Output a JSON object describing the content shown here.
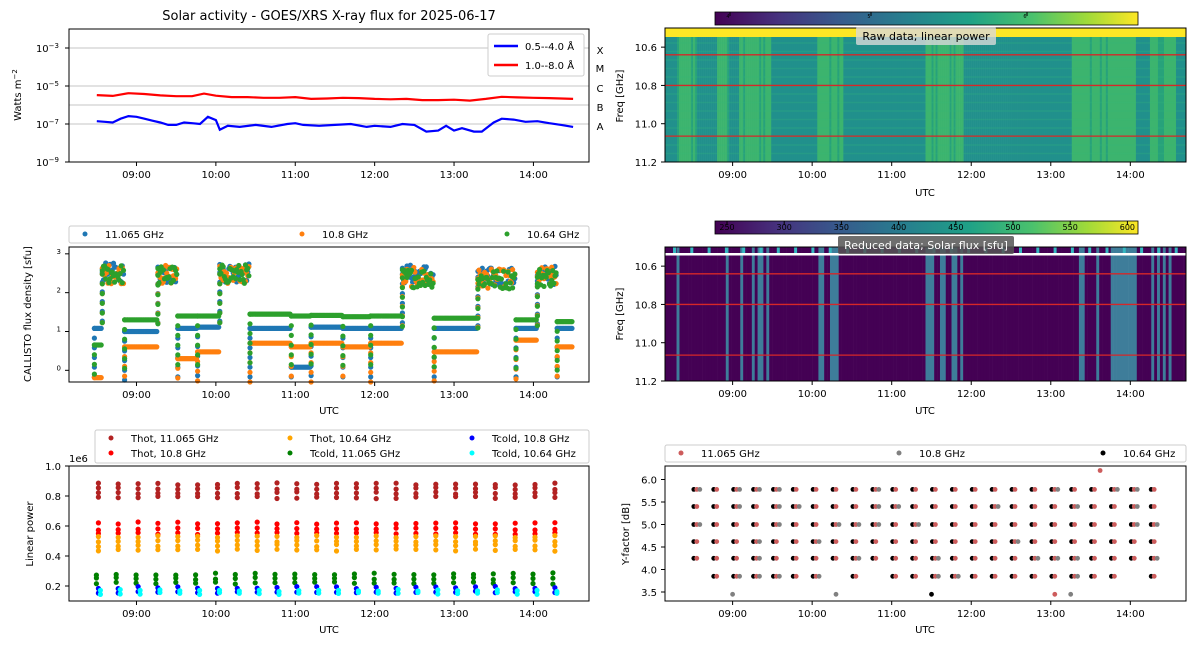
{
  "figure": {
    "utc_label": "UTC",
    "x_ticks": [
      "09:00",
      "10:00",
      "11:00",
      "12:00",
      "13:00",
      "14:00"
    ]
  },
  "chart_data": [
    {
      "id": "goes",
      "type": "line",
      "title": "Solar activity - GOES/XRS X-ray flux for 2025-06-17",
      "ylabel": "Watts m",
      "ylabel_sup": "−2",
      "yscale": "log",
      "ylim": [
        1e-09,
        0.01
      ],
      "y_ticks": [
        "10",
        "10",
        "10",
        "10"
      ],
      "y_tick_exps": [
        "−9",
        "−7",
        "−5",
        "−3"
      ],
      "flare_classes": [
        "X",
        "M",
        "C",
        "B",
        "A"
      ],
      "series": [
        {
          "name": "0.5--4.0 Å",
          "color": "#0000ff",
          "points": [
            [
              8.5,
              1.4e-07
            ],
            [
              8.6,
              1.3e-07
            ],
            [
              8.7,
              1.2e-07
            ],
            [
              8.8,
              1.9e-07
            ],
            [
              8.9,
              2.6e-07
            ],
            [
              9.0,
              2.4e-07
            ],
            [
              9.1,
              1.9e-07
            ],
            [
              9.2,
              1.5e-07
            ],
            [
              9.3,
              1.2e-07
            ],
            [
              9.4,
              9e-08
            ],
            [
              9.5,
              9e-08
            ],
            [
              9.6,
              1.2e-07
            ],
            [
              9.7,
              1.1e-07
            ],
            [
              9.8,
              1e-07
            ],
            [
              9.9,
              2.4e-07
            ],
            [
              10.0,
              1.6e-07
            ],
            [
              10.05,
              5e-08
            ],
            [
              10.15,
              8e-08
            ],
            [
              10.3,
              7e-08
            ],
            [
              10.5,
              9e-08
            ],
            [
              10.7,
              7e-08
            ],
            [
              10.9,
              1e-07
            ],
            [
              11.0,
              1.1e-07
            ],
            [
              11.1,
              9e-08
            ],
            [
              11.3,
              8e-08
            ],
            [
              11.5,
              9e-08
            ],
            [
              11.7,
              1e-07
            ],
            [
              11.9,
              7e-08
            ],
            [
              12.0,
              8e-08
            ],
            [
              12.2,
              7e-08
            ],
            [
              12.35,
              1e-07
            ],
            [
              12.5,
              9e-08
            ],
            [
              12.65,
              4e-08
            ],
            [
              12.8,
              4.5e-08
            ],
            [
              12.9,
              8e-08
            ],
            [
              13.0,
              4.5e-08
            ],
            [
              13.1,
              6e-08
            ],
            [
              13.25,
              4e-08
            ],
            [
              13.35,
              4e-08
            ],
            [
              13.5,
              1.2e-07
            ],
            [
              13.6,
              1.9e-07
            ],
            [
              13.75,
              1.7e-07
            ],
            [
              13.9,
              1.3e-07
            ],
            [
              14.05,
              1.4e-07
            ],
            [
              14.2,
              1.1e-07
            ],
            [
              14.35,
              9e-08
            ],
            [
              14.5,
              7e-08
            ]
          ]
        },
        {
          "name": "1.0--8.0 Å",
          "color": "#ff0000",
          "points": [
            [
              8.5,
              3.3e-06
            ],
            [
              8.7,
              3e-06
            ],
            [
              8.9,
              4.2e-06
            ],
            [
              9.1,
              3.8e-06
            ],
            [
              9.3,
              3.2e-06
            ],
            [
              9.5,
              2.9e-06
            ],
            [
              9.7,
              2.9e-06
            ],
            [
              9.85,
              4e-06
            ],
            [
              10.0,
              3.1e-06
            ],
            [
              10.2,
              2.6e-06
            ],
            [
              10.4,
              2.6e-06
            ],
            [
              10.6,
              2.4e-06
            ],
            [
              10.8,
              2.4e-06
            ],
            [
              11.0,
              2.6e-06
            ],
            [
              11.2,
              2.1e-06
            ],
            [
              11.4,
              2.2e-06
            ],
            [
              11.6,
              2.4e-06
            ],
            [
              11.8,
              2.3e-06
            ],
            [
              12.0,
              2.1e-06
            ],
            [
              12.2,
              2e-06
            ],
            [
              12.4,
              2.1e-06
            ],
            [
              12.6,
              1.8e-06
            ],
            [
              12.8,
              1.8e-06
            ],
            [
              13.0,
              1.9e-06
            ],
            [
              13.2,
              1.7e-06
            ],
            [
              13.4,
              2.1e-06
            ],
            [
              13.6,
              2.7e-06
            ],
            [
              13.8,
              2.5e-06
            ],
            [
              14.0,
              2.4e-06
            ],
            [
              14.2,
              2.3e-06
            ],
            [
              14.5,
              2.1e-06
            ]
          ]
        }
      ]
    },
    {
      "id": "raw",
      "type": "heatmap",
      "title": "Raw data; linear power",
      "ylabel": "Freq [GHz]",
      "y_ticks": [
        "10.6",
        "10.8",
        "11.0",
        "11.2"
      ],
      "colorbar_ticks": [
        "10",
        "10",
        "10"
      ],
      "colorbar_exps": [
        "4",
        "5",
        "6"
      ],
      "red_lines": [
        10.64,
        10.8,
        11.065
      ]
    },
    {
      "id": "callisto",
      "type": "scatter",
      "ylabel": "CALLISTO flux density [sfu]",
      "yscale": "log",
      "ylim": [
        0.5,
        1500
      ],
      "y_ticks": [
        "10",
        "10",
        "10",
        "10"
      ],
      "y_tick_exps": [
        "0",
        "1",
        "2",
        "3"
      ],
      "series": [
        {
          "name": "11.065 GHz",
          "color": "#1f77b4"
        },
        {
          "name": "10.8 GHz",
          "color": "#ff7f0e"
        },
        {
          "name": "10.64 GHz",
          "color": "#2ca02c"
        }
      ],
      "segments": [
        {
          "t0": 8.47,
          "t1": 8.57,
          "b": 12,
          "o": 0.65,
          "g": 4.5,
          "ptb": 0,
          "pto": 0,
          "ptg": 0
        },
        {
          "t0": 8.57,
          "t1": 8.85,
          "b": 330,
          "o": 300,
          "g": 300,
          "ptb": 1,
          "pto": 1,
          "ptg": 1
        },
        {
          "t0": 8.85,
          "t1": 9.27,
          "b": 10,
          "o": 4,
          "g": 20,
          "ptb": 0,
          "pto": 0,
          "ptg": 0
        },
        {
          "t0": 9.27,
          "t1": 9.52,
          "b": 300,
          "o": 290,
          "g": 280,
          "ptb": 1,
          "pto": 1,
          "ptg": 1
        },
        {
          "t0": 9.52,
          "t1": 9.77,
          "b": 12,
          "o": 2,
          "g": 25,
          "ptb": 0,
          "pto": 0,
          "ptg": 0
        },
        {
          "t0": 9.77,
          "t1": 10.05,
          "b": 13,
          "o": 3,
          "g": 25,
          "ptb": 0,
          "pto": 0,
          "ptg": 0
        },
        {
          "t0": 10.05,
          "t1": 10.43,
          "b": 330,
          "o": 300,
          "g": 300,
          "ptb": 1,
          "pto": 1,
          "ptg": 1
        },
        {
          "t0": 10.43,
          "t1": 10.95,
          "b": 12,
          "o": 5,
          "g": 28,
          "ptb": 0,
          "pto": 0,
          "ptg": 0
        },
        {
          "t0": 10.95,
          "t1": 11.2,
          "b": 1.2,
          "o": 4,
          "g": 25,
          "ptb": 0,
          "pto": 0,
          "ptg": 0
        },
        {
          "t0": 11.2,
          "t1": 11.6,
          "b": 13,
          "o": 5,
          "g": 26,
          "ptb": 0,
          "pto": 0,
          "ptg": 0
        },
        {
          "t0": 11.6,
          "t1": 11.95,
          "b": 12,
          "o": 4,
          "g": 24,
          "ptb": 0,
          "pto": 0,
          "ptg": 0
        },
        {
          "t0": 11.95,
          "t1": 12.35,
          "b": 12,
          "o": 5,
          "g": 25,
          "ptb": 0,
          "pto": 0,
          "ptg": 0
        },
        {
          "t0": 12.35,
          "t1": 12.75,
          "b": 300,
          "o": 250,
          "g": 240,
          "ptb": 1,
          "pto": 1,
          "ptg": 1
        },
        {
          "t0": 12.75,
          "t1": 13.3,
          "b": 12,
          "o": 3,
          "g": 22,
          "ptb": 0,
          "pto": 0,
          "ptg": 0
        },
        {
          "t0": 13.3,
          "t1": 13.78,
          "b": 250,
          "o": 230,
          "g": 220,
          "ptb": 1,
          "pto": 1,
          "ptg": 1
        },
        {
          "t0": 13.78,
          "t1": 14.05,
          "b": 12,
          "o": 6,
          "g": 20,
          "ptb": 0,
          "pto": 0,
          "ptg": 0
        },
        {
          "t0": 14.05,
          "t1": 14.3,
          "b": 280,
          "o": 260,
          "g": 250,
          "ptb": 1,
          "pto": 1,
          "ptg": 1
        },
        {
          "t0": 14.3,
          "t1": 14.5,
          "b": 12,
          "o": 4,
          "g": 18,
          "ptb": 0,
          "pto": 0,
          "ptg": 0
        }
      ]
    },
    {
      "id": "reduced",
      "type": "heatmap",
      "title": "Reduced data; Solar flux [sfu]",
      "ylabel": "Freq [GHz]",
      "y_ticks": [
        "10.6",
        "10.8",
        "11.0",
        "11.2"
      ],
      "colorbar_ticks": [
        "250",
        "300",
        "350",
        "400",
        "450",
        "500",
        "550",
        "600"
      ],
      "red_lines": [
        10.64,
        10.8,
        11.065
      ]
    },
    {
      "id": "linear",
      "type": "scatter",
      "ylabel": "Linear power",
      "offset": "1e6",
      "ylim": [
        0.1,
        1.0
      ],
      "y_ticks": [
        "0.2",
        "0.4",
        "0.6",
        "0.8",
        "1.0"
      ],
      "series": [
        {
          "name": "Thot, 11.065 GHz",
          "color": "#b22222",
          "levels": [
            0.79,
            0.82,
            0.85,
            0.88
          ]
        },
        {
          "name": "Thot, 10.8 GHz",
          "color": "#ff0000",
          "levels": [
            0.55,
            0.58,
            0.62
          ]
        },
        {
          "name": "Thot, 10.64 GHz",
          "color": "#ffa500",
          "levels": [
            0.44,
            0.47,
            0.5,
            0.53
          ]
        },
        {
          "name": "Tcold, 11.065 GHz",
          "color": "#008000",
          "levels": [
            0.22,
            0.25,
            0.28
          ]
        },
        {
          "name": "Tcold, 10.8 GHz",
          "color": "#0000ff",
          "levels": [
            0.16,
            0.19
          ]
        },
        {
          "name": "Tcold, 10.64 GHz",
          "color": "#00ffff",
          "levels": [
            0.15,
            0.17
          ]
        }
      ]
    },
    {
      "id": "yfactor",
      "type": "scatter",
      "ylabel": "Y-factor [dB]",
      "ylim": [
        3.3,
        6.3
      ],
      "y_ticks": [
        "3.5",
        "4.0",
        "4.5",
        "5.0",
        "5.5",
        "6.0"
      ],
      "levels": [
        3.85,
        4.25,
        4.62,
        5.0,
        5.4,
        5.78
      ],
      "series": [
        {
          "name": "11.065 GHz",
          "color": "#cd5c5c"
        },
        {
          "name": "10.8 GHz",
          "color": "#808080"
        },
        {
          "name": "10.64 GHz",
          "color": "#000000"
        }
      ]
    }
  ]
}
